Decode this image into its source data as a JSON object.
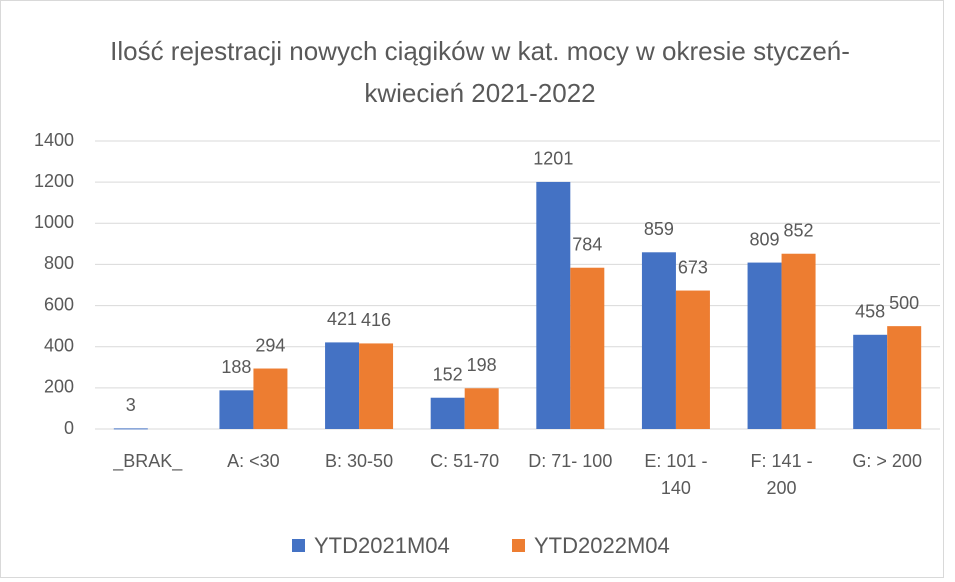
{
  "chart_data": {
    "type": "bar",
    "title": "Ilość rejestracji nowych ciągików w kat. mocy w okresie styczeń-kwiecień 2021-2022",
    "categories": [
      "_BRAK_",
      "A: <30",
      "B: 30-50",
      "C: 51-70",
      "D: 71- 100",
      "E: 101 - 140",
      "F: 141 - 200",
      "G: > 200"
    ],
    "series": [
      {
        "name": "YTD2021M04",
        "color": "#4472c4",
        "values": [
          3,
          188,
          421,
          152,
          1201,
          859,
          809,
          458
        ]
      },
      {
        "name": "YTD2022M04",
        "color": "#ed7d31",
        "values": [
          null,
          294,
          416,
          198,
          784,
          673,
          852,
          500
        ]
      }
    ],
    "ylim": [
      0,
      1400
    ],
    "yticks": [
      0,
      200,
      400,
      600,
      800,
      1000,
      1200,
      1400
    ],
    "grid": true,
    "legend": "bottom"
  }
}
